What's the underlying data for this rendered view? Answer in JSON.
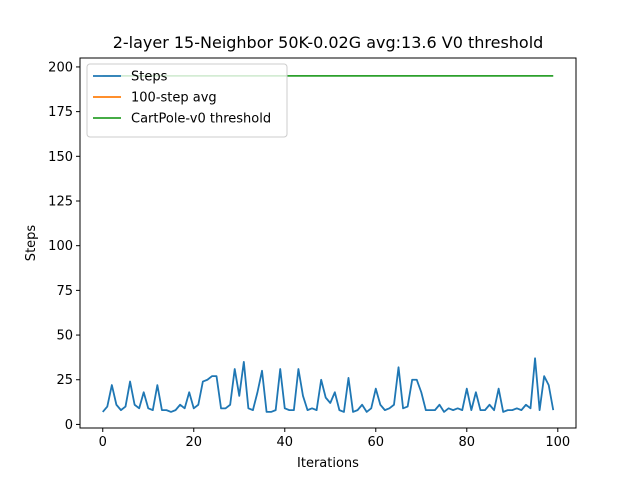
{
  "chart_data": {
    "type": "line",
    "title": "2-layer 15-Neighbor 50K-0.02G avg:13.6 V0 threshold",
    "xlabel": "Iterations",
    "ylabel": "Steps",
    "xlim": [
      -5,
      104
    ],
    "ylim": [
      -2,
      205
    ],
    "xticks": [
      0,
      20,
      40,
      60,
      80,
      100
    ],
    "yticks": [
      0,
      25,
      50,
      75,
      100,
      125,
      150,
      175,
      200
    ],
    "grid": false,
    "legend_position": "top-left",
    "series": [
      {
        "name": "Steps",
        "color": "#1f77b4",
        "x": [
          0,
          1,
          2,
          3,
          4,
          5,
          6,
          7,
          8,
          9,
          10,
          11,
          12,
          13,
          14,
          15,
          16,
          17,
          18,
          19,
          20,
          21,
          22,
          23,
          24,
          25,
          26,
          27,
          28,
          29,
          30,
          31,
          32,
          33,
          34,
          35,
          36,
          37,
          38,
          39,
          40,
          41,
          42,
          43,
          44,
          45,
          46,
          47,
          48,
          49,
          50,
          51,
          52,
          53,
          54,
          55,
          56,
          57,
          58,
          59,
          60,
          61,
          62,
          63,
          64,
          65,
          66,
          67,
          68,
          69,
          70,
          71,
          72,
          73,
          74,
          75,
          76,
          77,
          78,
          79,
          80,
          81,
          82,
          83,
          84,
          85,
          86,
          87,
          88,
          89,
          90,
          91,
          92,
          93,
          94,
          95,
          96,
          97,
          98,
          99
        ],
        "values": [
          7,
          10,
          22,
          11,
          8,
          10,
          24,
          11,
          9,
          18,
          9,
          8,
          22,
          8,
          8,
          7,
          8,
          11,
          9,
          18,
          9,
          11,
          24,
          25,
          27,
          27,
          9,
          9,
          11,
          31,
          16,
          35,
          9,
          8,
          18,
          30,
          7,
          7,
          8,
          31,
          9,
          8,
          8,
          31,
          16,
          8,
          9,
          8,
          25,
          15,
          12,
          18,
          8,
          7,
          26,
          7,
          8,
          11,
          7,
          9,
          20,
          11,
          8,
          9,
          11,
          32,
          9,
          10,
          25,
          25,
          18,
          8,
          8,
          8,
          11,
          7,
          9,
          8,
          9,
          8,
          20,
          8,
          18,
          8,
          8,
          11,
          8,
          20,
          7,
          8,
          8,
          9,
          8,
          11,
          9,
          37,
          8,
          27,
          22,
          8
        ]
      },
      {
        "name": "100-step avg",
        "color": "#ff7f0e",
        "x": [],
        "values": []
      },
      {
        "name": "CartPole-v0 threshold",
        "color": "#2ca02c",
        "x": [
          0,
          99
        ],
        "values": [
          195,
          195
        ]
      }
    ]
  }
}
